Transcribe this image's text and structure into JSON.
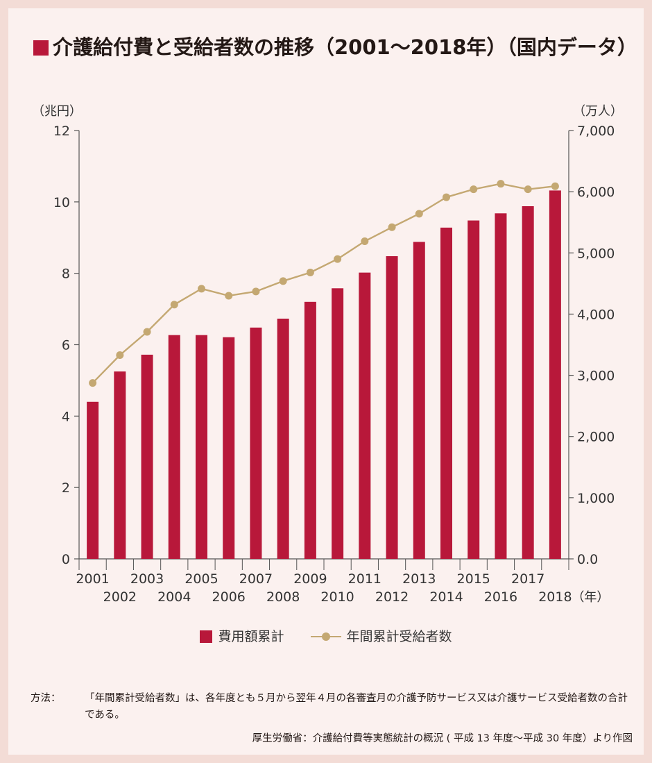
{
  "title": "介護給付費と受給者数の推移（2001～2018年）（国内データ）",
  "left_unit": "（兆円）",
  "right_unit": "（万人）",
  "x_unit": "（年）",
  "colors": {
    "bar": "#b8183a",
    "line": "#c4a872",
    "axis": "#555555"
  },
  "chart_data": {
    "type": "bar",
    "categories": [
      "2001",
      "2002",
      "2003",
      "2004",
      "2005",
      "2006",
      "2007",
      "2008",
      "2009",
      "2010",
      "2011",
      "2012",
      "2013",
      "2014",
      "2015",
      "2016",
      "2017",
      "2018"
    ],
    "series": [
      {
        "name": "費用額累計",
        "type": "bar",
        "axis": "left",
        "values": [
          4.4,
          5.25,
          5.72,
          6.27,
          6.27,
          6.21,
          6.48,
          6.73,
          7.2,
          7.58,
          8.02,
          8.48,
          8.88,
          9.28,
          9.48,
          9.68,
          9.88,
          10.32
        ]
      },
      {
        "name": "年間累計受給者数",
        "type": "line",
        "axis": "right",
        "values": [
          2875,
          3330,
          3710,
          4155,
          4415,
          4300,
          4370,
          4540,
          4680,
          4900,
          5190,
          5420,
          5640,
          5910,
          6040,
          6130,
          6040,
          6090
        ]
      }
    ],
    "y_left": {
      "lim": [
        0,
        12
      ],
      "ticks": [
        "0",
        "2",
        "4",
        "6",
        "8",
        "10",
        "12"
      ]
    },
    "y_right": {
      "lim": [
        0,
        7000
      ],
      "ticks": [
        "0.0",
        "1,000",
        "2,000",
        "3,000",
        "4,000",
        "5,000",
        "6,000",
        "7,000"
      ]
    },
    "x_tick_labels_top": [
      "2001",
      "2003",
      "2005",
      "2007",
      "2009",
      "2011",
      "2013",
      "2015",
      "2017"
    ],
    "x_tick_labels_bottom": [
      "2002",
      "2004",
      "2006",
      "2008",
      "2010",
      "2012",
      "2014",
      "2016",
      "2018"
    ],
    "grid": false,
    "legend_placement": "bottom-center"
  },
  "legend": {
    "bar_label": "費用額累計",
    "line_label": "年間累計受給者数"
  },
  "note": {
    "label": "方法：",
    "text": "「年間累計受給者数」は、各年度とも５月から翌年４月の各審査月の介護予防サービス又は介護サービス受給者数の合計である。"
  },
  "source": "厚生労働省：介護給付費等実態統計の概況 ( 平成 13 年度～平成 30 年度）より作図"
}
